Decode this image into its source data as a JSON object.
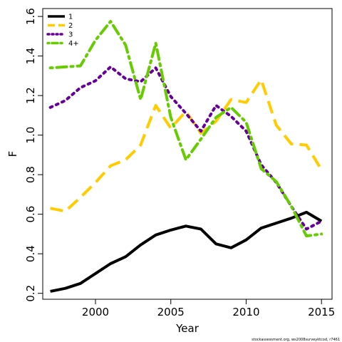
{
  "chart_data": {
    "type": "line",
    "xlabel": "Year",
    "ylabel": "F",
    "xlim": [
      1996.5,
      2015.7
    ],
    "ylim": [
      0.17,
      1.64
    ],
    "x_ticks": [
      2000,
      2005,
      2010,
      2015
    ],
    "y_ticks": [
      0.2,
      0.4,
      0.6,
      0.8,
      1.0,
      1.2,
      1.4,
      1.6
    ],
    "x_tick_labels": [
      "2000",
      "2005",
      "2010",
      "2015"
    ],
    "y_tick_labels": [
      "0.2",
      "0.4",
      "0.6",
      "0.8",
      "1.0",
      "1.2",
      "1.4",
      "1.6"
    ],
    "grid": false,
    "legend_position": "top-left",
    "x": [
      1997,
      1998,
      1999,
      2000,
      2001,
      2002,
      2003,
      2004,
      2005,
      2006,
      2007,
      2008,
      2009,
      2010,
      2011,
      2012,
      2013,
      2014,
      2015
    ],
    "series": [
      {
        "name": "1",
        "color": "#000000",
        "dash": "solid",
        "values": [
          0.21,
          0.225,
          0.25,
          0.3,
          0.35,
          0.385,
          0.445,
          0.495,
          0.52,
          0.54,
          0.525,
          0.45,
          0.43,
          0.47,
          0.53,
          0.555,
          0.58,
          0.61,
          0.565
        ]
      },
      {
        "name": "2",
        "color": "#ffcc00",
        "dash": "longdash",
        "values": [
          0.63,
          0.615,
          0.685,
          0.76,
          0.845,
          0.875,
          0.95,
          1.15,
          1.035,
          1.12,
          1.01,
          1.07,
          1.18,
          1.165,
          1.28,
          1.05,
          0.955,
          0.95,
          0.825
        ]
      },
      {
        "name": "3",
        "color": "#660099",
        "dash": "dotted",
        "values": [
          1.14,
          1.175,
          1.24,
          1.275,
          1.345,
          1.285,
          1.27,
          1.34,
          1.195,
          1.11,
          1.02,
          1.15,
          1.095,
          1.02,
          0.85,
          0.76,
          0.64,
          0.525,
          0.565
        ]
      },
      {
        "name": "4+",
        "color": "#66cc00",
        "dash": "dashdot",
        "values": [
          1.34,
          1.345,
          1.35,
          1.48,
          1.575,
          1.455,
          1.18,
          1.465,
          1.09,
          0.875,
          0.98,
          1.09,
          1.14,
          1.065,
          0.83,
          0.765,
          0.64,
          0.49,
          0.5
        ]
      }
    ]
  },
  "credit_text": "stockassessment.org, ws2008surveyktcod, r7461"
}
